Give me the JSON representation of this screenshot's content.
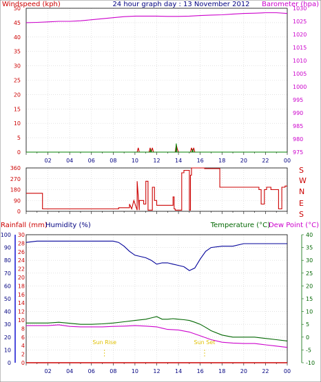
{
  "chart_data": [
    {
      "id": "wind_baro",
      "type": "line",
      "title": "24 hour graph day : 13 November 2012",
      "ylabel_left": "Windspeed (kph)",
      "ylabel_right": "Barometer (hpa)",
      "ylim_left": [
        0,
        50
      ],
      "yticks_left": [
        0,
        5,
        10,
        15,
        20,
        25,
        30,
        35,
        40,
        45,
        50
      ],
      "ylim_right": [
        975,
        1030
      ],
      "yticks_right": [
        975,
        980,
        985,
        990,
        995,
        1000,
        1005,
        1010,
        1015,
        1020,
        1025,
        1030
      ],
      "xlim": [
        0,
        24
      ],
      "xtick_labels": [
        "02",
        "04",
        "06",
        "08",
        "10",
        "12",
        "14",
        "16",
        "18",
        "20",
        "22",
        "00"
      ],
      "grid": true,
      "series": [
        {
          "name": "Barometer (hpa)",
          "axis": "right",
          "color": "#cc00cc",
          "x": [
            0,
            1,
            2,
            3,
            4,
            5,
            6,
            7,
            8,
            9,
            10,
            11,
            12,
            13,
            14,
            15,
            16,
            17,
            18,
            19,
            20,
            21,
            22,
            23,
            24
          ],
          "y": [
            1024.5,
            1024.6,
            1024.8,
            1025.0,
            1025.0,
            1025.2,
            1025.6,
            1026.0,
            1026.4,
            1026.8,
            1027.0,
            1027.0,
            1027.0,
            1026.9,
            1026.9,
            1027.0,
            1027.2,
            1027.4,
            1027.5,
            1027.8,
            1028.0,
            1028.1,
            1028.3,
            1028.3,
            1028.0
          ]
        },
        {
          "name": "Windspeed (kph)",
          "axis": "left",
          "color": "#cc0000",
          "x": [
            0,
            10.2,
            10.3,
            10.4,
            11.3,
            11.4,
            11.5,
            11.6,
            11.7,
            13.7,
            13.8,
            13.9,
            14.0,
            15.1,
            15.2,
            15.3,
            15.4,
            15.5,
            24
          ],
          "y": [
            0,
            0,
            1.5,
            0,
            0,
            1.5,
            0,
            1.5,
            0,
            0,
            2.5,
            1,
            0,
            0,
            1.5,
            0,
            1.5,
            0,
            0
          ]
        },
        {
          "name": "Wind gust",
          "axis": "left",
          "color": "#008000",
          "x": [
            0,
            11.4,
            11.45,
            11.5,
            13.75,
            13.8,
            13.85,
            15.25,
            15.3,
            15.35,
            24
          ],
          "y": [
            0,
            0,
            1.0,
            0,
            0,
            3.0,
            0,
            0,
            1.0,
            0,
            0
          ]
        }
      ]
    },
    {
      "id": "wind_dir",
      "type": "line",
      "ylim": [
        0,
        360
      ],
      "yticks": [
        0,
        90,
        180,
        270,
        360
      ],
      "right_labels": [
        "S",
        "E",
        "N",
        "W",
        "S"
      ],
      "xlim": [
        0,
        24
      ],
      "grid": true,
      "series": [
        {
          "name": "Wind direction",
          "color": "#cc0000",
          "x": [
            0,
            1.5,
            1.5,
            8.5,
            8.5,
            9.5,
            9.5,
            9.7,
            9.9,
            10.2,
            10.2,
            10.4,
            10.4,
            10.8,
            10.8,
            11.0,
            11.0,
            11.2,
            11.2,
            11.6,
            11.6,
            11.8,
            11.8,
            12.0,
            12.0,
            13.5,
            13.5,
            13.6,
            13.6,
            13.7,
            13.7,
            14.3,
            14.3,
            14.5,
            14.5,
            15.0,
            15.0,
            15.1,
            15.1,
            15.2,
            15.2,
            16.4,
            16.4,
            17.8,
            17.8,
            21.4,
            21.4,
            21.6,
            21.6,
            21.9,
            21.9,
            22.1,
            22.1,
            22.5,
            22.5,
            23.2,
            23.2,
            23.5,
            23.5,
            23.8,
            23.8,
            24
          ],
          "y": [
            150,
            150,
            20,
            20,
            30,
            30,
            60,
            20,
            90,
            10,
            250,
            10,
            90,
            90,
            60,
            60,
            250,
            250,
            10,
            10,
            200,
            200,
            90,
            90,
            50,
            50,
            120,
            120,
            20,
            20,
            10,
            10,
            320,
            320,
            340,
            340,
            10,
            10,
            300,
            300,
            360,
            360,
            355,
            355,
            200,
            200,
            180,
            180,
            60,
            60,
            180,
            180,
            200,
            200,
            180,
            180,
            20,
            20,
            200,
            200,
            210,
            210
          ]
        }
      ]
    },
    {
      "id": "temp_hum",
      "type": "line",
      "ylabel_left_1": "Rainfall (mm)",
      "ylabel_left_2": "Humidity (%)",
      "ylabel_right_1": "Temperature (°C)",
      "ylabel_right_2": "Dew Point (°C)",
      "ylim_rain": [
        0,
        30
      ],
      "yticks_rain": [
        0,
        2,
        4,
        6,
        8,
        10,
        12,
        14,
        16,
        18,
        20,
        22,
        24,
        26,
        28,
        30
      ],
      "ylim_humidity": [
        0,
        100
      ],
      "yticks_humidity": [
        0,
        10,
        20,
        30,
        40,
        50,
        60,
        70,
        80,
        90,
        100
      ],
      "ylim_temp": [
        -10,
        40
      ],
      "yticks_temp": [
        -10,
        -5,
        0,
        5,
        10,
        15,
        20,
        25,
        30,
        35,
        40
      ],
      "xlim": [
        0,
        24
      ],
      "xtick_labels": [
        "02",
        "04",
        "06",
        "08",
        "10",
        "12",
        "14",
        "16",
        "18",
        "20",
        "22",
        "00"
      ],
      "grid": true,
      "annotations": [
        {
          "text": "Sun Rise",
          "x": 7.2
        },
        {
          "text": "Sun Set",
          "x": 16.4
        }
      ],
      "series": [
        {
          "name": "Humidity (%)",
          "axis": "humidity",
          "color": "#000099",
          "x": [
            0,
            1,
            2,
            3,
            4,
            5,
            6,
            7,
            8,
            8.5,
            9,
            9.5,
            10,
            10.5,
            11,
            11.5,
            12,
            12.5,
            13,
            13.5,
            14,
            14.5,
            15,
            15.5,
            16,
            16.5,
            17,
            18,
            19,
            20,
            21,
            22,
            23,
            24
          ],
          "y": [
            94,
            95,
            95,
            95,
            95,
            95,
            95,
            95,
            95,
            94,
            91,
            87,
            84,
            83,
            82,
            80,
            77,
            78,
            78,
            77,
            76,
            75,
            72,
            74,
            81,
            87,
            90,
            91,
            91,
            93,
            93,
            93,
            93,
            93
          ]
        },
        {
          "name": "Temperature (°C)",
          "axis": "temp",
          "color": "#006600",
          "x": [
            0,
            1,
            2,
            3,
            4,
            5,
            6,
            7,
            8,
            9,
            10,
            11,
            11.5,
            12,
            12.5,
            13,
            13.5,
            14,
            14.5,
            15,
            15.5,
            16,
            16.5,
            17,
            18,
            19,
            20,
            21,
            22,
            23,
            24
          ],
          "y": [
            5.5,
            5.5,
            5.5,
            5.8,
            5.4,
            5.0,
            5.0,
            5.2,
            5.5,
            6.0,
            6.5,
            7.0,
            7.5,
            8.0,
            7.0,
            7.0,
            7.2,
            7.0,
            6.8,
            6.5,
            5.8,
            5.0,
            3.8,
            2.5,
            0.8,
            0.0,
            0.0,
            0.0,
            -0.5,
            -1.0,
            -1.5
          ]
        },
        {
          "name": "Dew Point (°C)",
          "axis": "temp",
          "color": "#cc00cc",
          "x": [
            0,
            1,
            2,
            3,
            4,
            5,
            6,
            7,
            8,
            9,
            10,
            11,
            12,
            12.5,
            13,
            14,
            15,
            16,
            17,
            18,
            19,
            20,
            21,
            22,
            23,
            24
          ],
          "y": [
            4.5,
            4.5,
            4.5,
            4.8,
            4.2,
            4.0,
            4.0,
            4.0,
            4.2,
            4.3,
            4.5,
            4.3,
            4.0,
            3.5,
            3.0,
            2.8,
            2.0,
            0.5,
            -1.0,
            -2.0,
            -2.3,
            -2.5,
            -2.5,
            -3.0,
            -3.5,
            -4.0
          ]
        },
        {
          "name": "Rainfall (mm)",
          "axis": "rain",
          "color": "#cc0000",
          "x": [
            0,
            24
          ],
          "y": [
            0,
            0
          ]
        }
      ]
    }
  ]
}
